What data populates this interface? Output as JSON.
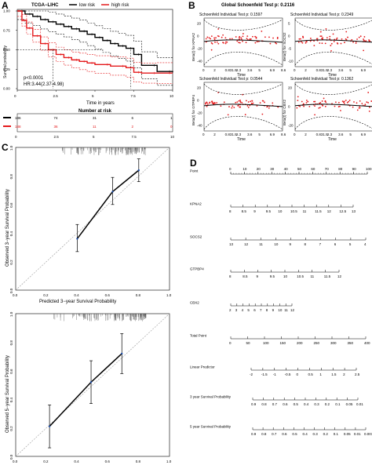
{
  "panel_labels": {
    "a": "A",
    "b": "B",
    "c": "C",
    "d": "D"
  },
  "chart_data": [
    {
      "id": "km",
      "type": "line",
      "title": "TCGA−LIHC",
      "legend": [
        "low risk",
        "high risk"
      ],
      "xlabel": "Time in years",
      "ylabel": "Survival probability",
      "xlim": [
        0,
        10
      ],
      "ylim": [
        0,
        1
      ],
      "x_ticks": [
        "0",
        "2.5",
        "5",
        "7.5",
        "10"
      ],
      "y_ticks": [
        "0.00",
        "0.25",
        "0.50",
        "0.75",
        "1.00"
      ],
      "annotations": [
        "p<0.0001",
        "HR:3.44(2.37-4.98)"
      ],
      "colors": {
        "low": "#000000",
        "high": "#e41a1c"
      },
      "series": [
        {
          "name": "low risk",
          "x": [
            0,
            0.5,
            1,
            1.5,
            2,
            2.5,
            3,
            3.5,
            4,
            4.5,
            5,
            5.5,
            6,
            6.5,
            7,
            7.5,
            8,
            9,
            10
          ],
          "y": [
            1.0,
            0.96,
            0.93,
            0.89,
            0.86,
            0.83,
            0.8,
            0.77,
            0.74,
            0.7,
            0.66,
            0.62,
            0.58,
            0.55,
            0.52,
            0.44,
            0.3,
            0.22,
            0.21
          ]
        },
        {
          "name": "high risk",
          "x": [
            0,
            0.3,
            0.6,
            1,
            1.5,
            2,
            2.5,
            3,
            3.5,
            4,
            4.5,
            5,
            6,
            7,
            7.5,
            8,
            9,
            10
          ],
          "y": [
            1.0,
            0.88,
            0.78,
            0.68,
            0.58,
            0.5,
            0.44,
            0.4,
            0.37,
            0.35,
            0.33,
            0.31,
            0.29,
            0.27,
            0.21,
            0.2,
            0.2,
            0.2
          ]
        }
      ],
      "risk_table": {
        "title": "Number at risk",
        "rows": [
          [
            "186",
            "74",
            "31",
            "6",
            "1"
          ],
          [
            "188",
            "36",
            "11",
            "2",
            "0"
          ]
        ]
      }
    },
    {
      "id": "schoenfeld",
      "type": "scatter",
      "title": "Global Schoenfeld Test p: 0.2116",
      "x_tick_labels": [
        "0",
        "2",
        "0.831.5",
        "2.3",
        "3.6",
        "5",
        "6.9",
        "8.6"
      ],
      "xlabel": "Time",
      "subplots": [
        {
          "label": "Schoenfeld Individual Test p: 0.1597",
          "ylabel": "Beta(t) for KPNA2",
          "yticks": [
            "20",
            "0",
            "-20",
            "-40"
          ]
        },
        {
          "label": "Schoenfeld Individual Test p: 0.2349",
          "ylabel": "Beta(t) for SOCS2",
          "yticks": [
            "5",
            "0",
            "-5",
            "-10"
          ]
        },
        {
          "label": "Schoenfeld Individual Test p: 0.0544",
          "ylabel": "Beta(t) for GTPBP4",
          "yticks": [
            "20",
            "0",
            "-20",
            "-40"
          ]
        },
        {
          "label": "Schoenfeld Individual Test p: 0.1362",
          "ylabel": "Beta(t) for CBX2",
          "yticks": [
            "20",
            "0",
            "-20"
          ]
        }
      ]
    },
    {
      "id": "calib3",
      "type": "line",
      "xlabel": "Predicted 3−year Survival Probability",
      "ylabel": "Observed 3−year Survival Probability",
      "xlim": [
        0,
        1
      ],
      "ylim": [
        0,
        1
      ],
      "x_ticks": [
        "0.0",
        "0.2",
        "0.4",
        "0.6",
        "0.8",
        "1.0"
      ],
      "y_ticks": [
        "0.0",
        "0.2",
        "0.4",
        "0.6",
        "0.8",
        "1.0"
      ],
      "points": [
        {
          "x": 0.4,
          "y": 0.36,
          "lo": 0.27,
          "hi": 0.46
        },
        {
          "x": 0.63,
          "y": 0.69,
          "lo": 0.6,
          "hi": 0.79
        },
        {
          "x": 0.8,
          "y": 0.84,
          "lo": 0.76,
          "hi": 0.92
        }
      ]
    },
    {
      "id": "calib5",
      "type": "line",
      "xlabel": "Predicted 5−year Survival Probability",
      "ylabel": "Observed 5−year Survival Probability",
      "xlim": [
        0,
        1
      ],
      "ylim": [
        0,
        1
      ],
      "x_ticks": [
        "0.0",
        "0.2",
        "0.4",
        "0.6",
        "0.8",
        "1.0"
      ],
      "y_ticks": [
        "0.0",
        "0.2",
        "0.4",
        "0.6",
        "0.8",
        "1.0"
      ],
      "points": [
        {
          "x": 0.22,
          "y": 0.21,
          "lo": 0.06,
          "hi": 0.36
        },
        {
          "x": 0.49,
          "y": 0.52,
          "lo": 0.37,
          "hi": 0.67
        },
        {
          "x": 0.69,
          "y": 0.72,
          "lo": 0.58,
          "hi": 0.86
        }
      ]
    },
    {
      "id": "nomogram",
      "type": "table",
      "rows": [
        {
          "label": "Point",
          "ticks": [
            "0",
            "10",
            "20",
            "30",
            "40",
            "50",
            "60",
            "70",
            "80",
            "90",
            "100"
          ]
        },
        {
          "label": "KPNA2",
          "ticks": [
            "8",
            "8.5",
            "9",
            "9.5",
            "10",
            "10.5",
            "11",
            "11.5",
            "12",
            "12.5",
            "13"
          ]
        },
        {
          "label": "SOCS2",
          "ticks": [
            "13",
            "12",
            "11",
            "10",
            "9",
            "8",
            "7",
            "6",
            "5",
            "4"
          ]
        },
        {
          "label": "GTPBP4",
          "ticks": [
            "8",
            "8.5",
            "9",
            "9.5",
            "10",
            "10.5",
            "11",
            "11.5",
            "12"
          ]
        },
        {
          "label": "CBX2",
          "ticks": [
            "2",
            "3",
            "4",
            "5",
            "6",
            "7",
            "8",
            "9",
            "10",
            "11",
            "12"
          ]
        },
        {
          "label": "Total Point",
          "ticks": [
            "0",
            "50",
            "100",
            "150",
            "200",
            "250",
            "300",
            "350",
            "400"
          ]
        },
        {
          "label": "Linear Predictor",
          "ticks": [
            "-2",
            "-1.5",
            "-1",
            "-0.5",
            "0",
            "0.5",
            "1",
            "1.5",
            "2",
            "2.5"
          ]
        },
        {
          "label": "3 year Survival Probability",
          "ticks": [
            "0.9",
            "0.8",
            "0.7",
            "0.6",
            "0.5",
            "0.4",
            "0.3",
            "0.2",
            "0.1",
            "0.05",
            "0.01"
          ]
        },
        {
          "label": "5 year Survival Probability",
          "ticks": [
            "0.9",
            "0.8",
            "0.7",
            "0.6",
            "0.5",
            "0.4",
            "0.3",
            "0.2",
            "0.1",
            "0.05",
            "0.01",
            "0.001"
          ]
        }
      ]
    }
  ]
}
